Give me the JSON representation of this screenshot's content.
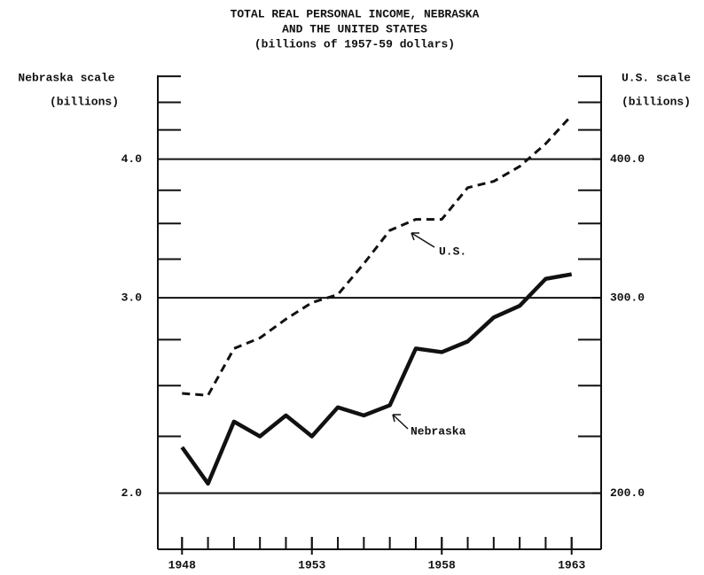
{
  "chart_data": {
    "type": "line",
    "title": [
      "TOTAL REAL PERSONAL INCOME, NEBRASKA",
      "AND THE UNITED STATES",
      "(billions of 1957-59 dollars)"
    ],
    "y_axis_label": [
      "Nebraska scale",
      "(billions)"
    ],
    "y2_axis_label": [
      "U.S. scale",
      "(billions)"
    ],
    "log_scale": true,
    "grid": true,
    "x": [
      1948,
      1949,
      1950,
      1951,
      1952,
      1953,
      1954,
      1955,
      1956,
      1957,
      1958,
      1959,
      1960,
      1961,
      1962,
      1963
    ],
    "xlim": [
      1947,
      1964
    ],
    "xticks": [
      1948,
      1953,
      1958,
      1963
    ],
    "xminorticks": [
      1948,
      1949,
      1950,
      1951,
      1952,
      1953,
      1954,
      1955,
      1956,
      1957,
      1958,
      1959,
      1960,
      1961,
      1962,
      1963
    ],
    "ylim": [
      1.78,
      4.76
    ],
    "yticks": [
      {
        "value": 2,
        "label": "2.0"
      },
      {
        "value": 3,
        "label": "3.0"
      },
      {
        "value": 4,
        "label": "4.0"
      }
    ],
    "yminorticks": [
      2.25,
      2.5,
      2.75,
      3.25,
      3.5,
      3.75,
      4.25,
      4.5,
      4.75
    ],
    "y2lim": [
      178,
      476
    ],
    "y2ticks": [
      {
        "value": 200,
        "label": "200.0"
      },
      {
        "value": 300,
        "label": "300.0"
      },
      {
        "value": 400,
        "label": "400.0"
      }
    ],
    "y2minorticks": [
      225,
      250,
      275,
      325,
      350,
      375,
      425,
      450,
      475
    ],
    "series": [
      {
        "name": "Nebraska",
        "color": "#111111",
        "dash": false,
        "values": [
          2.2,
          2.04,
          2.32,
          2.25,
          2.35,
          2.25,
          2.39,
          2.35,
          2.4,
          2.7,
          2.68,
          2.74,
          2.88,
          2.95,
          3.12,
          3.15
        ]
      },
      {
        "name": "U.S.",
        "color": "#111111",
        "dash": true,
        "axis": "y2",
        "values": [
          246,
          245,
          270,
          276,
          287,
          297,
          302,
          322,
          345,
          353,
          353,
          377,
          382,
          394,
          413,
          438
        ]
      }
    ]
  }
}
